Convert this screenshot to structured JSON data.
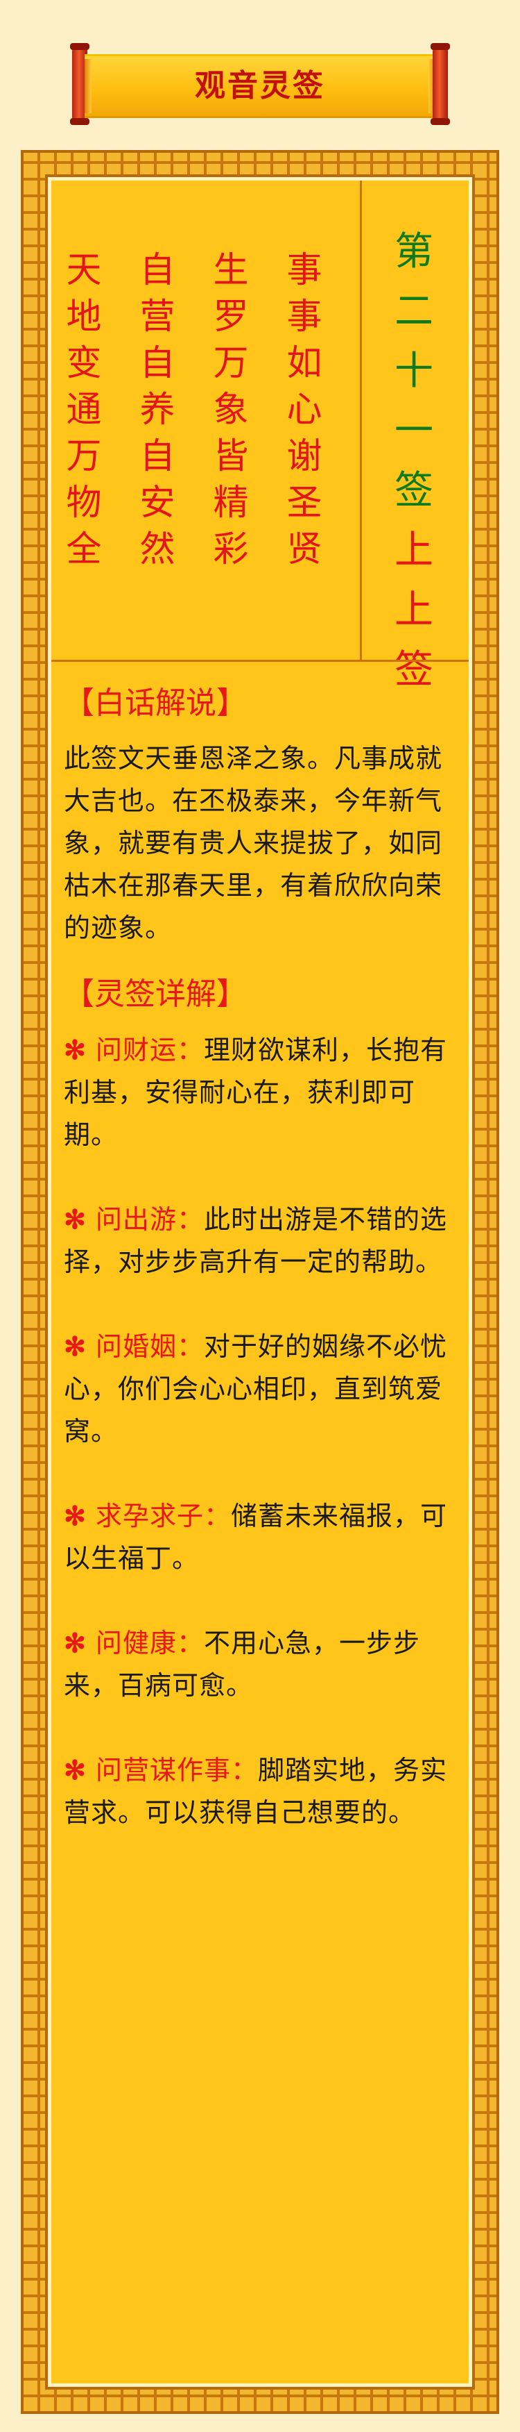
{
  "header": {
    "title": "观音灵签"
  },
  "verse": {
    "columns": [
      [
        "天",
        "地",
        "变",
        "通",
        "万",
        "物",
        "全"
      ],
      [
        "自",
        "营",
        "自",
        "养",
        "自",
        "安",
        "然"
      ],
      [
        "生",
        "罗",
        "万",
        "象",
        "皆",
        "精",
        "彩"
      ],
      [
        "事",
        "事",
        "如",
        "心",
        "谢",
        "圣",
        "贤"
      ]
    ]
  },
  "rank": {
    "chars": [
      "第",
      "二",
      "十",
      "一",
      "签",
      "上",
      "上",
      "签"
    ]
  },
  "explanation": {
    "heading": "【白话解说】",
    "text": "此签文天垂恩泽之象。凡事成就大吉也。在丕极泰来，今年新气象，就要有贵人来提拔了，如同枯木在那春天里，有着欣欣向荣的迹象。"
  },
  "details": {
    "heading": "【灵签详解】",
    "items": [
      {
        "star": "✻",
        "label": "问财运：",
        "text": "理财欲谋利，长抱有利基，安得耐心在，获利即可期。"
      },
      {
        "star": "✻",
        "label": "问出游：",
        "text": "此时出游是不错的选择，对步步高升有一定的帮助。"
      },
      {
        "star": "✻",
        "label": "问婚姻：",
        "text": "对于好的姻缘不必忧心，你们会心心相印，直到筑爱窝。"
      },
      {
        "star": "✻",
        "label": "求孕求子：",
        "text": "储蓄未来福报，可以生福丁。"
      },
      {
        "star": "✻",
        "label": "问健康：",
        "text": "不用心急，一步步来，百病可愈。"
      },
      {
        "star": "✻",
        "label": "问营谋作事：",
        "text": "脚踏实地，务实营求。可以获得自己想要的。"
      }
    ]
  }
}
